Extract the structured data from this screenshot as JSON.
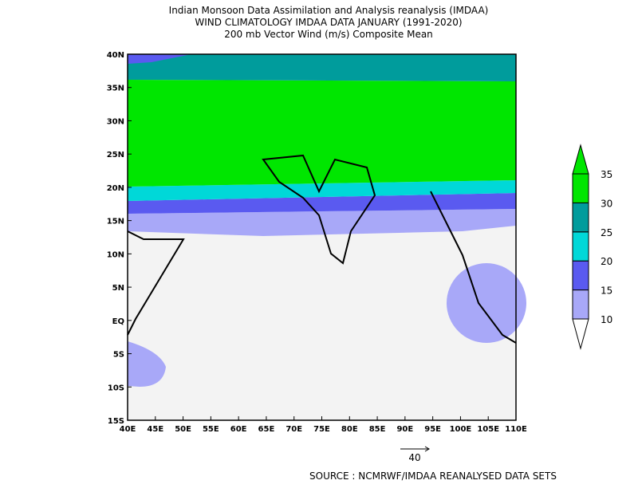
{
  "header": {
    "title_lines": [
      "Indian Monsoon Data Assimilation and Analysis reanalysis (IMDAA)",
      "WIND CLIMATOLOGY IMDAA DATA JANUARY (1991-2020)",
      "200 mb Vector Wind (m/s) Composite Mean"
    ]
  },
  "map": {
    "lat_labels": [
      "40N",
      "35N",
      "30N",
      "25N",
      "20N",
      "15N",
      "10N",
      "5N",
      "EQ",
      "5S",
      "10S",
      "15S"
    ],
    "lon_labels": [
      "40E",
      "45E",
      "50E",
      "55E",
      "60E",
      "65E",
      "70E",
      "75E",
      "80E",
      "85E",
      "90E",
      "95E",
      "100E",
      "105E",
      "110E"
    ]
  },
  "colorbar": {
    "levels": [
      10,
      15,
      20,
      25,
      30,
      35
    ],
    "colors": [
      "#a8a8f8",
      "#5a5af0",
      "#00d8d8",
      "#009c9c",
      "#00e600"
    ]
  },
  "reference_vector": {
    "label": "40"
  },
  "source": "SOURCE :  NCMRWF/IMDAA REANALYSED DATA SETS"
}
